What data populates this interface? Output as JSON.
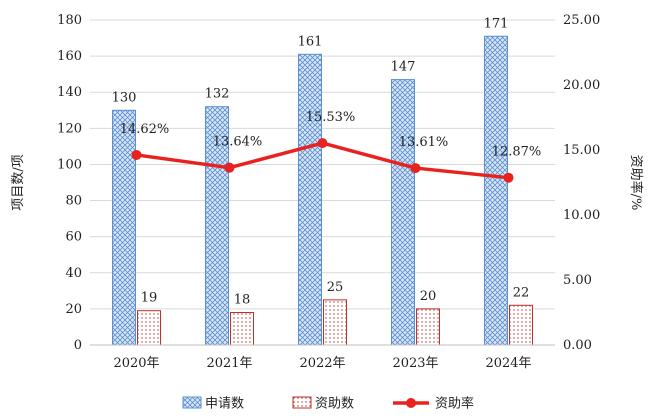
{
  "chart_data": {
    "type": "bar",
    "categories": [
      "2020年",
      "2021年",
      "2022年",
      "2023年",
      "2024年"
    ],
    "ylabel": "项目数/项",
    "y2label": "资助率/%",
    "ylim": [
      0,
      180
    ],
    "y_ticks": [
      "0",
      "20",
      "40",
      "60",
      "80",
      "100",
      "120",
      "140",
      "160",
      "180"
    ],
    "y2lim": [
      0,
      25
    ],
    "y2_ticks": [
      "0.00",
      "5.00",
      "10.00",
      "15.00",
      "20.00",
      "25.00"
    ],
    "grid": true,
    "legend_position": "bottom",
    "series": [
      {
        "name": "申请数",
        "kind": "bar",
        "values": [
          130,
          132,
          161,
          147,
          171
        ],
        "labels": [
          "130",
          "132",
          "161",
          "147",
          "171"
        ],
        "color": "#5b8fd0",
        "pattern": "crosshatch"
      },
      {
        "name": "资助数",
        "kind": "bar",
        "values": [
          19,
          18,
          25,
          20,
          22
        ],
        "labels": [
          "19",
          "18",
          "25",
          "20",
          "22"
        ],
        "color": "#c0302a",
        "pattern": "dots"
      },
      {
        "name": "资助率",
        "kind": "line",
        "axis": "right",
        "values": [
          14.62,
          13.64,
          15.53,
          13.61,
          12.87
        ],
        "labels": [
          "14.62%",
          "13.64%",
          "15.53%",
          "13.61%",
          "12.87%"
        ],
        "color": "#e8231f"
      }
    ]
  }
}
